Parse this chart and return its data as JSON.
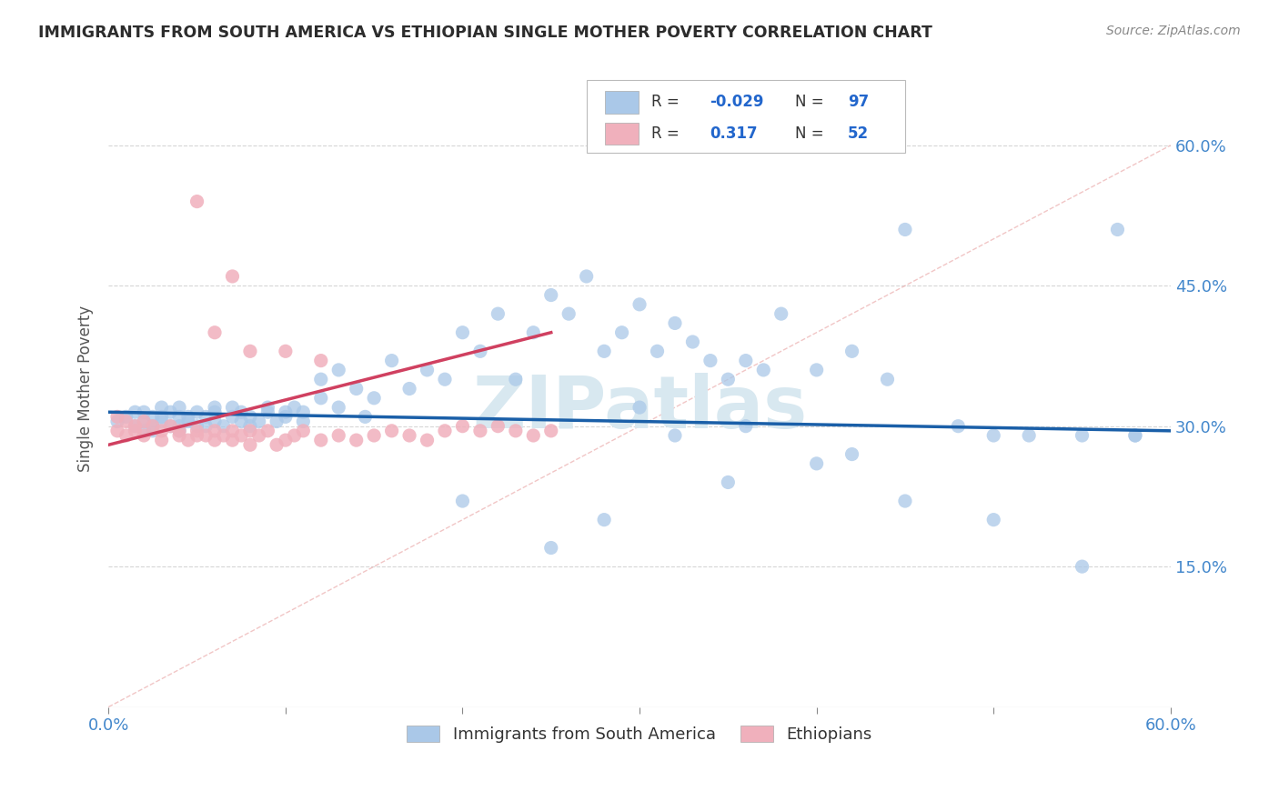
{
  "title": "IMMIGRANTS FROM SOUTH AMERICA VS ETHIOPIAN SINGLE MOTHER POVERTY CORRELATION CHART",
  "source": "Source: ZipAtlas.com",
  "ylabel": "Single Mother Poverty",
  "xmin": 0.0,
  "xmax": 0.6,
  "ymin": 0.0,
  "ymax": 0.68,
  "yticks": [
    0.15,
    0.3,
    0.45,
    0.6
  ],
  "ytick_labels": [
    "15.0%",
    "30.0%",
    "45.0%",
    "60.0%"
  ],
  "blue_color": "#aac8e8",
  "pink_color": "#f0b0bc",
  "blue_line_color": "#1a5fa8",
  "pink_line_color": "#d04060",
  "watermark": "ZIPatlas",
  "blue_scatter_x": [
    0.005,
    0.01,
    0.015,
    0.015,
    0.02,
    0.02,
    0.02,
    0.025,
    0.025,
    0.025,
    0.03,
    0.03,
    0.03,
    0.035,
    0.035,
    0.04,
    0.04,
    0.04,
    0.04,
    0.045,
    0.045,
    0.05,
    0.05,
    0.055,
    0.055,
    0.06,
    0.06,
    0.06,
    0.065,
    0.07,
    0.07,
    0.075,
    0.075,
    0.08,
    0.08,
    0.085,
    0.09,
    0.09,
    0.095,
    0.1,
    0.1,
    0.105,
    0.11,
    0.11,
    0.12,
    0.12,
    0.13,
    0.13,
    0.14,
    0.145,
    0.15,
    0.16,
    0.17,
    0.18,
    0.19,
    0.2,
    0.21,
    0.22,
    0.23,
    0.24,
    0.25,
    0.26,
    0.27,
    0.28,
    0.29,
    0.3,
    0.31,
    0.32,
    0.33,
    0.34,
    0.35,
    0.36,
    0.37,
    0.38,
    0.4,
    0.42,
    0.44,
    0.45,
    0.48,
    0.5,
    0.52,
    0.55,
    0.57,
    0.58,
    0.3,
    0.32,
    0.36,
    0.4,
    0.45,
    0.5,
    0.55,
    0.58,
    0.28,
    0.2,
    0.25,
    0.35,
    0.42
  ],
  "blue_scatter_y": [
    0.305,
    0.31,
    0.3,
    0.315,
    0.295,
    0.305,
    0.315,
    0.3,
    0.31,
    0.295,
    0.305,
    0.31,
    0.32,
    0.3,
    0.315,
    0.3,
    0.31,
    0.295,
    0.32,
    0.305,
    0.31,
    0.3,
    0.315,
    0.3,
    0.31,
    0.305,
    0.315,
    0.32,
    0.3,
    0.31,
    0.32,
    0.305,
    0.315,
    0.3,
    0.31,
    0.305,
    0.315,
    0.32,
    0.305,
    0.31,
    0.315,
    0.32,
    0.305,
    0.315,
    0.35,
    0.33,
    0.36,
    0.32,
    0.34,
    0.31,
    0.33,
    0.37,
    0.34,
    0.36,
    0.35,
    0.4,
    0.38,
    0.42,
    0.35,
    0.4,
    0.44,
    0.42,
    0.46,
    0.38,
    0.4,
    0.43,
    0.38,
    0.41,
    0.39,
    0.37,
    0.35,
    0.37,
    0.36,
    0.42,
    0.36,
    0.38,
    0.35,
    0.51,
    0.3,
    0.29,
    0.29,
    0.29,
    0.51,
    0.29,
    0.32,
    0.29,
    0.3,
    0.26,
    0.22,
    0.2,
    0.15,
    0.29,
    0.2,
    0.22,
    0.17,
    0.24,
    0.27
  ],
  "pink_scatter_x": [
    0.005,
    0.005,
    0.01,
    0.01,
    0.015,
    0.015,
    0.02,
    0.02,
    0.025,
    0.03,
    0.03,
    0.035,
    0.04,
    0.04,
    0.045,
    0.05,
    0.05,
    0.055,
    0.06,
    0.06,
    0.065,
    0.07,
    0.07,
    0.075,
    0.08,
    0.08,
    0.085,
    0.09,
    0.095,
    0.1,
    0.105,
    0.11,
    0.12,
    0.13,
    0.14,
    0.15,
    0.16,
    0.17,
    0.18,
    0.19,
    0.2,
    0.21,
    0.22,
    0.23,
    0.24,
    0.25,
    0.06,
    0.08,
    0.1,
    0.12,
    0.05,
    0.07
  ],
  "pink_scatter_y": [
    0.31,
    0.295,
    0.305,
    0.29,
    0.3,
    0.295,
    0.305,
    0.29,
    0.3,
    0.295,
    0.285,
    0.3,
    0.29,
    0.295,
    0.285,
    0.29,
    0.295,
    0.29,
    0.285,
    0.295,
    0.29,
    0.295,
    0.285,
    0.29,
    0.295,
    0.28,
    0.29,
    0.295,
    0.28,
    0.285,
    0.29,
    0.295,
    0.285,
    0.29,
    0.285,
    0.29,
    0.295,
    0.29,
    0.285,
    0.295,
    0.3,
    0.295,
    0.3,
    0.295,
    0.29,
    0.295,
    0.4,
    0.38,
    0.38,
    0.37,
    0.54,
    0.46
  ],
  "blue_trend_x": [
    0.0,
    0.6
  ],
  "blue_trend_y": [
    0.315,
    0.295
  ],
  "pink_trend_x": [
    0.0,
    0.25
  ],
  "pink_trend_y": [
    0.28,
    0.4
  ],
  "ref_line_x": [
    0.0,
    0.6
  ],
  "ref_line_y": [
    0.0,
    0.6
  ],
  "background_color": "#ffffff",
  "grid_color": "#cccccc",
  "title_color": "#2c2c2c",
  "axis_label_color": "#555555",
  "tick_color": "#4488cc",
  "watermark_color": "#d8e8f0"
}
